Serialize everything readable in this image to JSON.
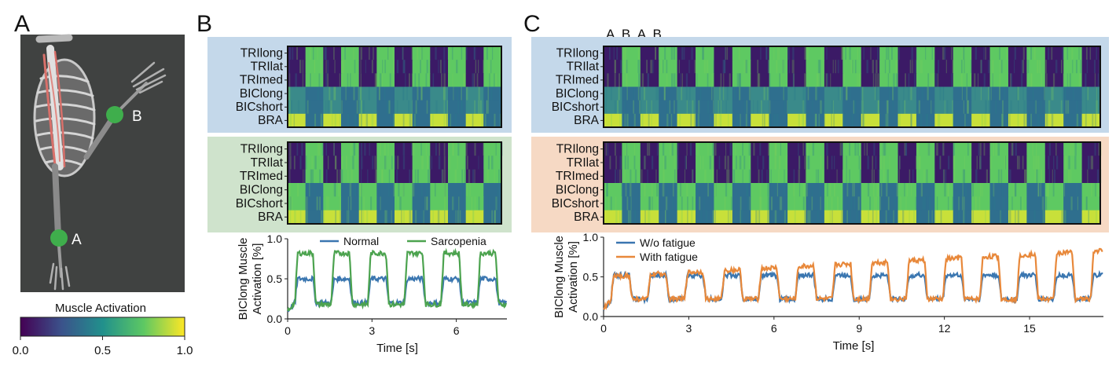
{
  "panel_labels": {
    "a": "A",
    "b": "B",
    "c": "C"
  },
  "sim": {
    "point_a": "A",
    "point_b": "B",
    "point_color": "#3fae4c",
    "background": "#404241"
  },
  "colorbar": {
    "title": "Muscle Activation",
    "ticks": [
      "0.0",
      "0.5",
      "1.0"
    ],
    "colormap": [
      "#440154",
      "#3b528b",
      "#21908c",
      "#5dc863",
      "#fde725"
    ]
  },
  "sequence_label": "A  B  A  B ...",
  "heatmap_colors": {
    "low": "#3b1a66",
    "high": "#5ec962",
    "bra_high": "#c8e03a",
    "mid": "#2f6f8e",
    "mid_alt": "#3a8a8a"
  },
  "chart_data": [
    {
      "type": "heatmap",
      "panel": "B",
      "condition": "Normal",
      "background": "#c4d8ea",
      "rows": [
        "TRIlong",
        "TRIlat",
        "TRImed",
        "BIClong",
        "BICshort",
        "BRA"
      ],
      "cycles": 6.1,
      "bic_level": 0.55
    },
    {
      "type": "heatmap",
      "panel": "B",
      "condition": "Sarcopenia",
      "background": "#cfe3cc",
      "rows": [
        "TRIlong",
        "TRIlat",
        "TRImed",
        "BIClong",
        "BICshort",
        "BRA"
      ],
      "cycles": 6.1,
      "bic_level": 0.8
    },
    {
      "type": "line",
      "panel": "B",
      "xlabel": "Time [s]",
      "ylabel": "BIClong Muscle\nActivation [%]",
      "xlim": [
        0,
        7.8
      ],
      "ylim": [
        0,
        1
      ],
      "xticks": [
        0,
        3,
        6
      ],
      "yticks": [
        0.0,
        0.5,
        1.0
      ],
      "period": 1.3,
      "series": [
        {
          "name": "Normal",
          "color": "#3a76b0",
          "high": 0.5,
          "low": 0.2
        },
        {
          "name": "Sarcopenia",
          "color": "#4ca34f",
          "high": 0.82,
          "low": 0.18
        }
      ]
    },
    {
      "type": "heatmap",
      "panel": "C",
      "condition": "W/o fatigue",
      "background": "#c4d8ea",
      "rows": [
        "TRIlong",
        "TRIlat",
        "TRImed",
        "BIClong",
        "BICshort",
        "BRA"
      ],
      "cycles": 13.5,
      "bic_level": 0.55
    },
    {
      "type": "heatmap",
      "panel": "C",
      "condition": "With fatigue",
      "background": "#f6d9c4",
      "rows": [
        "TRIlong",
        "TRIlat",
        "TRImed",
        "BIClong",
        "BICshort",
        "BRA"
      ],
      "cycles": 13.5,
      "bic_level": 0.85
    },
    {
      "type": "line",
      "panel": "C",
      "xlabel": "Time [s]",
      "ylabel": "BIClong Muscle\nActivation [%]",
      "xlim": [
        0,
        17.6
      ],
      "ylim": [
        0,
        1
      ],
      "xticks": [
        0,
        3,
        6,
        9,
        12,
        15
      ],
      "yticks": [
        0.0,
        0.5,
        1.0
      ],
      "period": 1.3,
      "series": [
        {
          "name": "W/o fatigue",
          "color": "#3a76b0",
          "high": 0.52,
          "low": 0.22
        },
        {
          "name": "With fatigue",
          "color": "#e8883a",
          "high_start": 0.5,
          "high_end": 0.83,
          "low": 0.22
        }
      ]
    }
  ]
}
